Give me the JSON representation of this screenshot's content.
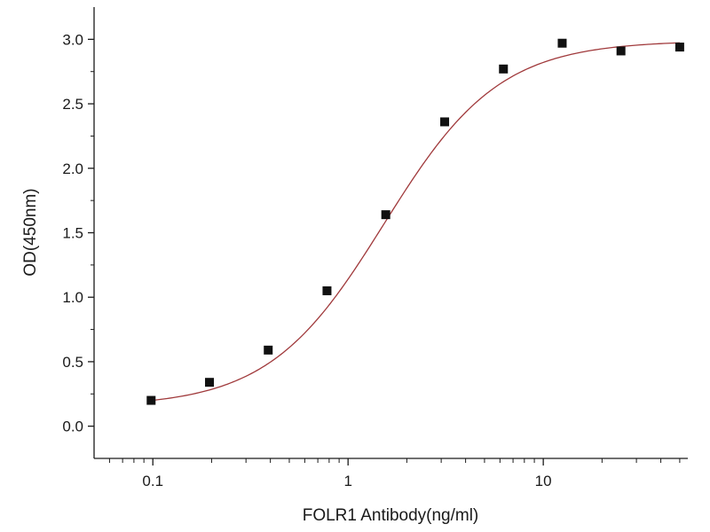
{
  "chart_data": {
    "type": "scatter",
    "title": "",
    "xlabel": "FOLR1 Antibody(ng/ml)",
    "ylabel": "OD(450nm)",
    "x_scale": "log",
    "xlim": [
      0.05,
      55
    ],
    "ylim": [
      -0.25,
      3.25
    ],
    "x_ticks": [
      {
        "value": 0.1,
        "label": "0.1"
      },
      {
        "value": 1,
        "label": "1"
      },
      {
        "value": 10,
        "label": "10"
      }
    ],
    "y_ticks": [
      {
        "value": 0.0,
        "label": "0.0"
      },
      {
        "value": 0.5,
        "label": "0.5"
      },
      {
        "value": 1.0,
        "label": "1.0"
      },
      {
        "value": 1.5,
        "label": "1.5"
      },
      {
        "value": 2.0,
        "label": "2.0"
      },
      {
        "value": 2.5,
        "label": "2.5"
      },
      {
        "value": 3.0,
        "label": "3.0"
      }
    ],
    "grid": false,
    "series": [
      {
        "marker": "square",
        "color": "#111111",
        "x": [
          0.098,
          0.195,
          0.39,
          0.78,
          1.56,
          3.125,
          6.25,
          12.5,
          25,
          50
        ],
        "y": [
          0.2,
          0.34,
          0.59,
          1.05,
          1.64,
          2.36,
          2.77,
          2.97,
          2.91,
          2.94
        ]
      }
    ],
    "fit_curve": {
      "model": "4PL",
      "color": "#a0393b",
      "bottom": 0.15,
      "top": 2.99,
      "ec50": 1.53,
      "hill": 1.47
    }
  }
}
